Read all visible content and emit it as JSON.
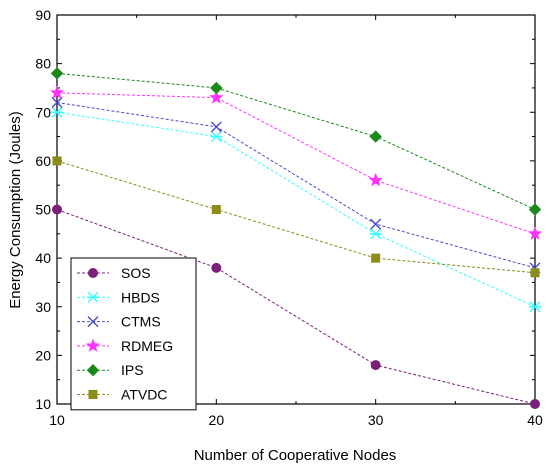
{
  "chart_data": {
    "type": "line",
    "title": "",
    "xlabel": "Number of Cooperative Nodes",
    "ylabel": "Energy Consumption (Joules)",
    "xlim": [
      10,
      40
    ],
    "ylim": [
      10,
      90
    ],
    "xticks": [
      10,
      20,
      30,
      40
    ],
    "yticks": [
      10,
      20,
      30,
      40,
      50,
      60,
      70,
      80,
      90
    ],
    "grid": false,
    "legend_position": "bottom-left",
    "x": [
      10,
      20,
      30,
      40
    ],
    "series": [
      {
        "name": "SOS",
        "values": [
          50,
          38,
          18,
          10
        ],
        "color": "#7b1f7b",
        "marker": "circle"
      },
      {
        "name": "HBDS",
        "values": [
          70,
          65,
          45,
          30
        ],
        "color": "#33ffff",
        "marker": "asterisk"
      },
      {
        "name": "CTMS",
        "values": [
          72,
          67,
          47,
          38
        ],
        "color": "#4a4ac8",
        "marker": "x"
      },
      {
        "name": "RDMEG",
        "values": [
          74,
          73,
          56,
          45
        ],
        "color": "#ff33ff",
        "marker": "star"
      },
      {
        "name": "IPS",
        "values": [
          78,
          75,
          65,
          50
        ],
        "color": "#1a8a1a",
        "marker": "diamond"
      },
      {
        "name": "ATVDC",
        "values": [
          60,
          50,
          40,
          37
        ],
        "color": "#8c8c1a",
        "marker": "square"
      }
    ]
  }
}
